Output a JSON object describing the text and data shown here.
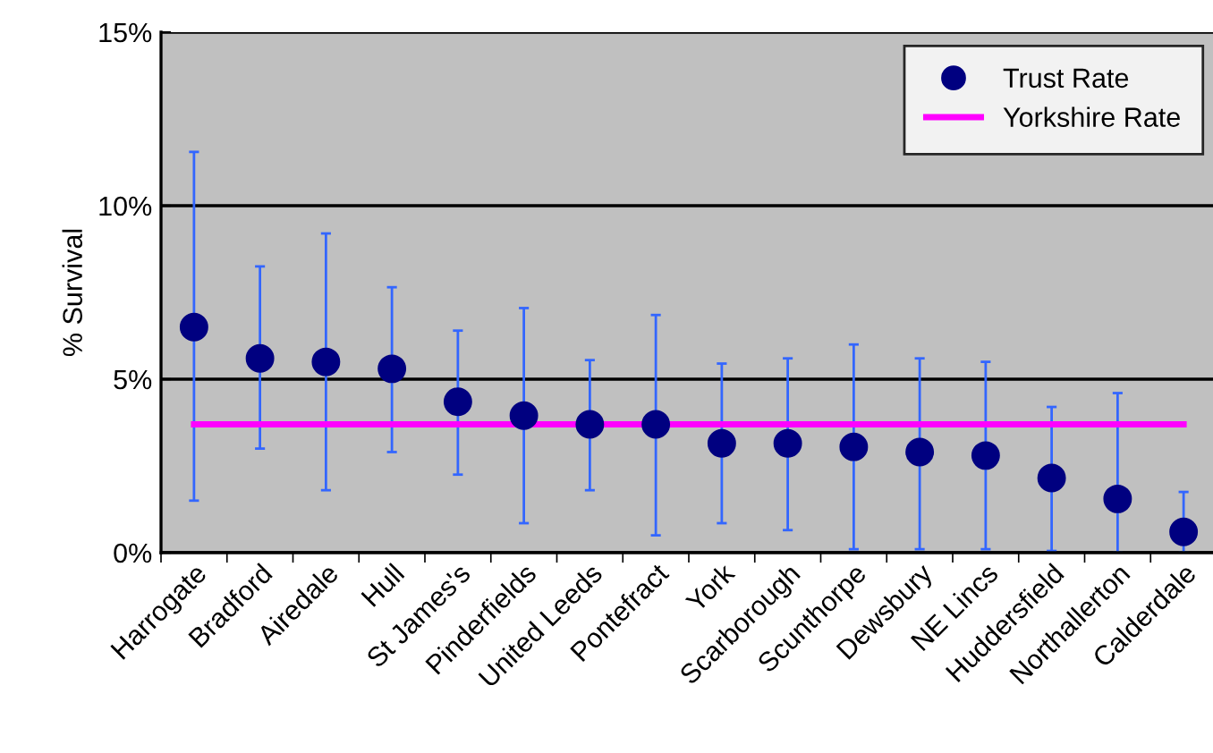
{
  "chart_data": {
    "type": "scatter",
    "ylabel": "% Survival",
    "categories": [
      "Harrogate",
      "Bradford",
      "Airedale",
      "Hull",
      "St James's",
      "Pinderfields",
      "United Leeds",
      "Pontefract",
      "York",
      "Scarborough",
      "Scunthorpe",
      "Dewsbury",
      "NE Lincs",
      "Huddersfield",
      "Northallerton",
      "Calderdale"
    ],
    "series": [
      {
        "name": "Trust Rate",
        "color": "#000080",
        "marker": "circle",
        "values": [
          6.5,
          5.6,
          5.5,
          5.3,
          4.35,
          3.95,
          3.7,
          3.7,
          3.15,
          3.15,
          3.05,
          2.9,
          2.8,
          2.15,
          1.55,
          0.6
        ],
        "errors": [
          [
            1.5,
            11.55
          ],
          [
            3.0,
            8.25
          ],
          [
            1.8,
            9.2
          ],
          [
            2.9,
            7.65
          ],
          [
            2.25,
            6.4
          ],
          [
            0.85,
            7.05
          ],
          [
            1.8,
            5.55
          ],
          [
            0.5,
            6.85
          ],
          [
            0.85,
            5.45
          ],
          [
            0.65,
            5.6
          ],
          [
            0.1,
            6.0
          ],
          [
            0.1,
            5.6
          ],
          [
            0.1,
            5.5
          ],
          [
            0.05,
            4.2
          ],
          [
            0.0,
            4.6
          ],
          [
            0.0,
            1.75
          ]
        ]
      },
      {
        "name": "Yorkshire Rate",
        "type": "line",
        "color": "#ff00ff",
        "marker": "none",
        "values": [
          3.7,
          3.7,
          3.7,
          3.7,
          3.7,
          3.7,
          3.7,
          3.7,
          3.7,
          3.7,
          3.7,
          3.7,
          3.7,
          3.7,
          3.7,
          3.7
        ]
      }
    ],
    "ylim": [
      0,
      15
    ],
    "yticks": [
      {
        "value": 0,
        "label": "0%"
      },
      {
        "value": 5,
        "label": "5%"
      },
      {
        "value": 10,
        "label": "10%"
      },
      {
        "value": 15,
        "label": "15%"
      }
    ],
    "grid": "y",
    "legend": "top right"
  }
}
